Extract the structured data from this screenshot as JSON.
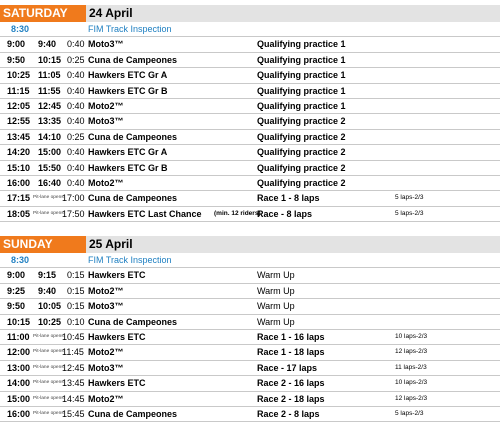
{
  "days": [
    {
      "day": "SATURDAY",
      "date": "24 April",
      "inspection": {
        "time": "8:30",
        "label": "FIM Track Inspection"
      },
      "rows": [
        {
          "start": "9:00",
          "end": "9:40",
          "dur": "0:40",
          "class": "Moto3™",
          "session": "Qualifying practice 1",
          "laps": ""
        },
        {
          "start": "9:50",
          "end": "10:15",
          "dur": "0:25",
          "class": "Cuna de Campeones",
          "session": "Qualifying practice 1",
          "laps": ""
        },
        {
          "start": "10:25",
          "end": "11:05",
          "dur": "0:40",
          "class": "Hawkers ETC Gr A",
          "session": "Qualifying practice 1",
          "laps": ""
        },
        {
          "start": "11:15",
          "end": "11:55",
          "dur": "0:40",
          "class": "Hawkers ETC Gr B",
          "session": "Qualifying practice 1",
          "laps": ""
        },
        {
          "start": "12:05",
          "end": "12:45",
          "dur": "0:40",
          "class": "Moto2™",
          "session": "Qualifying practice 1",
          "laps": ""
        },
        {
          "start": "12:55",
          "end": "13:35",
          "dur": "0:40",
          "class": "Moto3™",
          "session": "Qualifying practice 2",
          "laps": ""
        },
        {
          "start": "13:45",
          "end": "14:10",
          "dur": "0:25",
          "class": "Cuna de Campeones",
          "session": "Qualifying practice 2",
          "laps": ""
        },
        {
          "start": "14:20",
          "end": "15:00",
          "dur": "0:40",
          "class": "Hawkers ETC Gr A",
          "session": "Qualifying practice 2",
          "laps": ""
        },
        {
          "start": "15:10",
          "end": "15:50",
          "dur": "0:40",
          "class": "Hawkers ETC Gr B",
          "session": "Qualifying practice 2",
          "laps": ""
        },
        {
          "start": "16:00",
          "end": "16:40",
          "dur": "0:40",
          "class": "Moto2™",
          "session": "Qualifying practice 2",
          "laps": ""
        },
        {
          "start": "17:15",
          "pit": "Pit-lane opens",
          "end": "17:00",
          "dur": "",
          "class": "Cuna de Campeones",
          "session": "Race 1 - 8 laps",
          "laps": "5 laps-2/3"
        },
        {
          "start": "18:05",
          "pit": "Pit-lane opens",
          "end": "17:50",
          "dur": "",
          "class": "Hawkers ETC Last Chance",
          "class_note": "(min. 12 riders)",
          "session": "Race - 8 laps",
          "laps": "5 laps-2/3"
        }
      ]
    },
    {
      "day": "SUNDAY",
      "date": "25 April",
      "inspection": {
        "time": "8:30",
        "label": "FIM Track Inspection"
      },
      "rows": [
        {
          "start": "9:00",
          "end": "9:15",
          "dur": "0:15",
          "class": "Hawkers ETC",
          "session": "Warm Up",
          "laps": "",
          "normal": true
        },
        {
          "start": "9:25",
          "end": "9:40",
          "dur": "0:15",
          "class": "Moto2™",
          "session": "Warm Up",
          "laps": "",
          "normal": true
        },
        {
          "start": "9:50",
          "end": "10:05",
          "dur": "0:15",
          "class": "Moto3™",
          "session": "Warm Up",
          "laps": "",
          "normal": true
        },
        {
          "start": "10:15",
          "end": "10:25",
          "dur": "0:10",
          "class": "Cuna de Campeones",
          "session": "Warm Up",
          "laps": "",
          "normal": true
        },
        {
          "start": "11:00",
          "pit": "Pit-lane opens",
          "end": "10:45",
          "dur": "",
          "class": "Hawkers ETC",
          "session": "Race 1 - 16 laps",
          "laps": "10 laps-2/3"
        },
        {
          "start": "12:00",
          "pit": "Pit-lane opens",
          "end": "11:45",
          "dur": "",
          "class": "Moto2™",
          "session": "Race 1 - 18 laps",
          "laps": "12 laps-2/3"
        },
        {
          "start": "13:00",
          "pit": "Pit-lane opens",
          "end": "12:45",
          "dur": "",
          "class": "Moto3™",
          "session": "Race - 17 laps",
          "laps": "11 laps-2/3"
        },
        {
          "start": "14:00",
          "pit": "Pit-lane opens",
          "end": "13:45",
          "dur": "",
          "class": "Hawkers ETC",
          "session": "Race 2 - 16 laps",
          "laps": "10 laps-2/3"
        },
        {
          "start": "15:00",
          "pit": "Pit-lane opens",
          "end": "14:45",
          "dur": "",
          "class": "Moto2™",
          "session": "Race 2 - 18 laps",
          "laps": "12 laps-2/3"
        },
        {
          "start": "16:00",
          "pit": "Pit-lane opens",
          "end": "15:45",
          "dur": "",
          "class": "Cuna de Campeones",
          "session": "Race 2 - 8 laps",
          "laps": "5 laps-2/3"
        }
      ]
    }
  ]
}
